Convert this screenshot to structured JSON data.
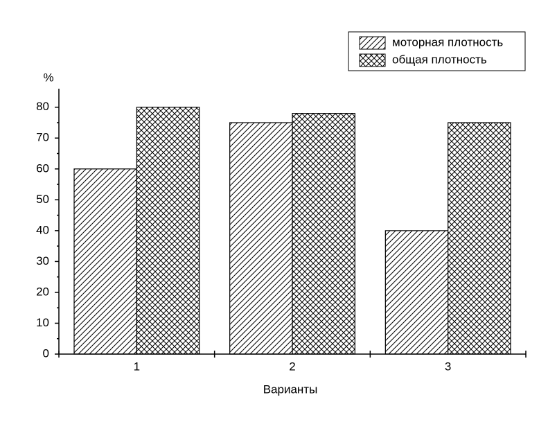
{
  "chart_data": {
    "type": "bar",
    "categories": [
      "1",
      "2",
      "3"
    ],
    "series": [
      {
        "name": "моторная плотность",
        "color": "#000000",
        "hatch": "diagonal",
        "values": [
          60,
          75,
          40
        ]
      },
      {
        "name": "общая плотность",
        "color": "#000000",
        "hatch": "cross",
        "values": [
          80,
          78,
          75
        ]
      }
    ],
    "y_label": "%",
    "x_label": "Варианты",
    "ylim": [
      0,
      86
    ],
    "yticks": [
      0,
      10,
      20,
      30,
      40,
      50,
      60,
      70,
      80
    ],
    "legend": "upper right"
  }
}
